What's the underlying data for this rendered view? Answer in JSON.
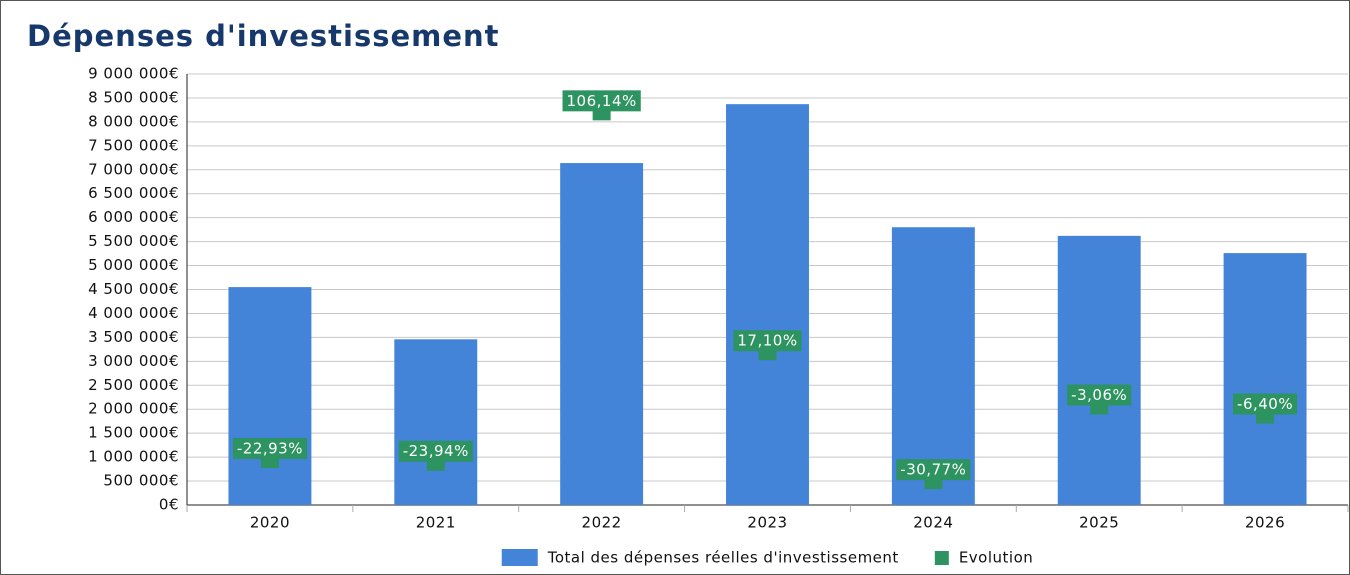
{
  "chart_data": {
    "type": "bar",
    "title": "Dépenses d'investissement",
    "categories": [
      "2020",
      "2021",
      "2022",
      "2023",
      "2024",
      "2025",
      "2026"
    ],
    "series": [
      {
        "name": "Total des dépenses réelles d'investissement",
        "color": "#4384d8",
        "values": [
          4550000,
          3460000,
          7140000,
          8370000,
          5800000,
          5620000,
          5260000
        ]
      },
      {
        "name": "Evolution",
        "type": "scatter",
        "axis": "y2",
        "color": "#2d9360",
        "values": [
          -22.93,
          -23.94,
          106.14,
          17.1,
          -30.77,
          -3.06,
          -6.4
        ],
        "value_labels": [
          "-22,93%",
          "-23,94%",
          "106,14%",
          "17,10%",
          "-30,77%",
          "-3,06%",
          "-6,40%"
        ]
      }
    ],
    "ylim": [
      0,
      9000000
    ],
    "yticks": [
      {
        "value": 0,
        "label": "0€"
      },
      {
        "value": 500000,
        "label": "500 000€"
      },
      {
        "value": 1000000,
        "label": "1 000 000€"
      },
      {
        "value": 1500000,
        "label": "1 500 000€"
      },
      {
        "value": 2000000,
        "label": "2 000 000€"
      },
      {
        "value": 2500000,
        "label": "2 500 000€"
      },
      {
        "value": 3000000,
        "label": "3 000 000€"
      },
      {
        "value": 3500000,
        "label": "3 500 000€"
      },
      {
        "value": 4000000,
        "label": "4 000 000€"
      },
      {
        "value": 4500000,
        "label": "4 500 000€"
      },
      {
        "value": 5000000,
        "label": "5 000 000€"
      },
      {
        "value": 5500000,
        "label": "5 500 000€"
      },
      {
        "value": 6000000,
        "label": "6 000 000€"
      },
      {
        "value": 6500000,
        "label": "6 500 000€"
      },
      {
        "value": 7000000,
        "label": "7 000 000€"
      },
      {
        "value": 7500000,
        "label": "7 500 000€"
      },
      {
        "value": 8000000,
        "label": "8 000 000€"
      },
      {
        "value": 8500000,
        "label": "8 500 000€"
      },
      {
        "value": 9000000,
        "label": "9 000 000€"
      }
    ],
    "y2lim": [
      -40,
      120
    ],
    "grid": true,
    "legend": "bottom"
  }
}
